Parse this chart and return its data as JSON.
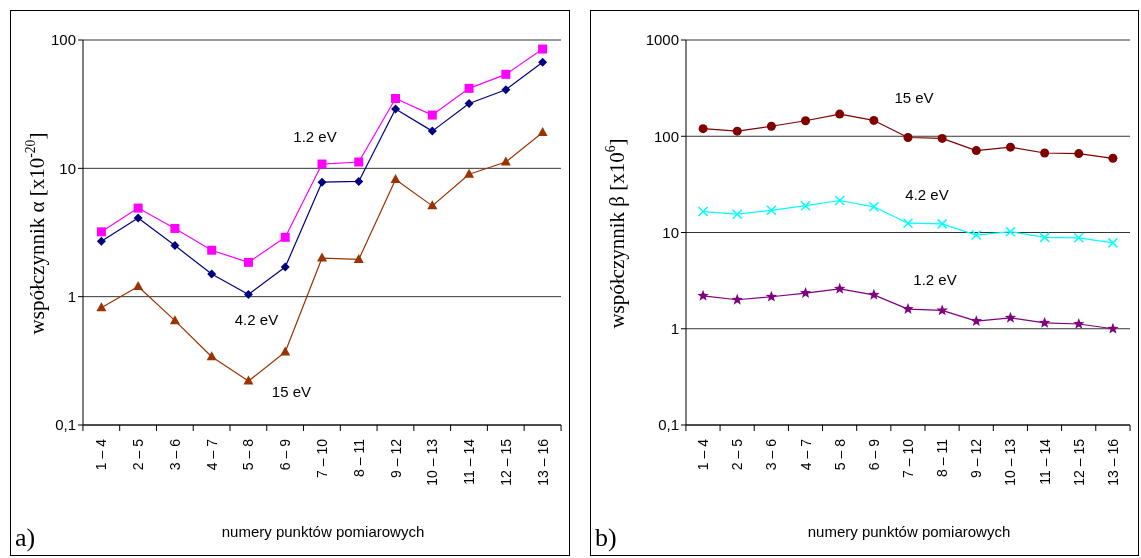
{
  "chart_data": [
    {
      "type": "line",
      "xlabel": "numery punktów pomiarowych",
      "ylabel": "współczynnik α [x10$^{-20}$]",
      "annotations": [
        "a)"
      ],
      "categories": [
        "1 – 4",
        "2 – 5",
        "3 – 6",
        "4 – 7",
        "5 – 8",
        "6 – 9",
        "7 – 10",
        "8 – 11",
        "9 – 12",
        "10 – 13",
        "11 – 14",
        "12 – 15",
        "13 – 16"
      ],
      "series": [
        {
          "name": "1.2 eV",
          "color": "#ff00ff",
          "marker": "square",
          "values": [
            3.2,
            4.9,
            3.4,
            2.3,
            1.85,
            2.9,
            10.8,
            11.2,
            35,
            26,
            42,
            54,
            85
          ]
        },
        {
          "name": "4.2 eV",
          "color": "#000080",
          "marker": "diamond",
          "values": [
            2.7,
            4.1,
            2.5,
            1.5,
            1.04,
            1.7,
            7.8,
            7.9,
            29,
            19.5,
            32,
            41,
            67
          ]
        },
        {
          "name": "15 eV",
          "color": "#993300",
          "marker": "triangle",
          "values": [
            0.82,
            1.2,
            0.65,
            0.34,
            0.22,
            0.37,
            2.0,
            1.95,
            8.2,
            5.1,
            9,
            11.2,
            19
          ]
        }
      ],
      "ylim": [
        0.1,
        100
      ],
      "yticks": [
        {
          "value": 0.1,
          "label": "0,1"
        },
        1,
        10,
        100
      ],
      "log": true,
      "grid": "y"
    },
    {
      "type": "line",
      "xlabel": "numery punktów pomiarowych",
      "ylabel": "współczynnik β [x10$^{6}$]",
      "annotations": [
        "b)"
      ],
      "categories": [
        "1 – 4",
        "2 – 5",
        "3 – 6",
        "4 – 7",
        "5 – 8",
        "6 – 9",
        "7 – 10",
        "8 – 11",
        "9 – 12",
        "10 – 13",
        "11 – 14",
        "12 – 15",
        "13 – 16"
      ],
      "series": [
        {
          "name": "15 eV",
          "color": "#800000",
          "marker": "circle",
          "values": [
            120,
            113,
            127,
            145,
            170,
            146,
            97,
            95,
            71,
            77,
            67,
            66,
            59
          ]
        },
        {
          "name": "4.2 eV",
          "color": "#00ffff",
          "marker": "cross",
          "values": [
            16.5,
            15.5,
            17,
            19,
            21.5,
            18.5,
            12.5,
            12.3,
            9.4,
            10.2,
            8.9,
            8.8,
            7.8
          ]
        },
        {
          "name": "1.2 eV",
          "color": "#800080",
          "marker": "star",
          "values": [
            2.2,
            2.0,
            2.15,
            2.35,
            2.6,
            2.25,
            1.6,
            1.55,
            1.2,
            1.3,
            1.15,
            1.12,
            1.0
          ]
        }
      ],
      "ylim": [
        0.1,
        1000
      ],
      "yticks": [
        {
          "value": 0.1,
          "label": "0,1"
        },
        1,
        10,
        100,
        1000
      ],
      "log": true,
      "grid": "y"
    }
  ]
}
